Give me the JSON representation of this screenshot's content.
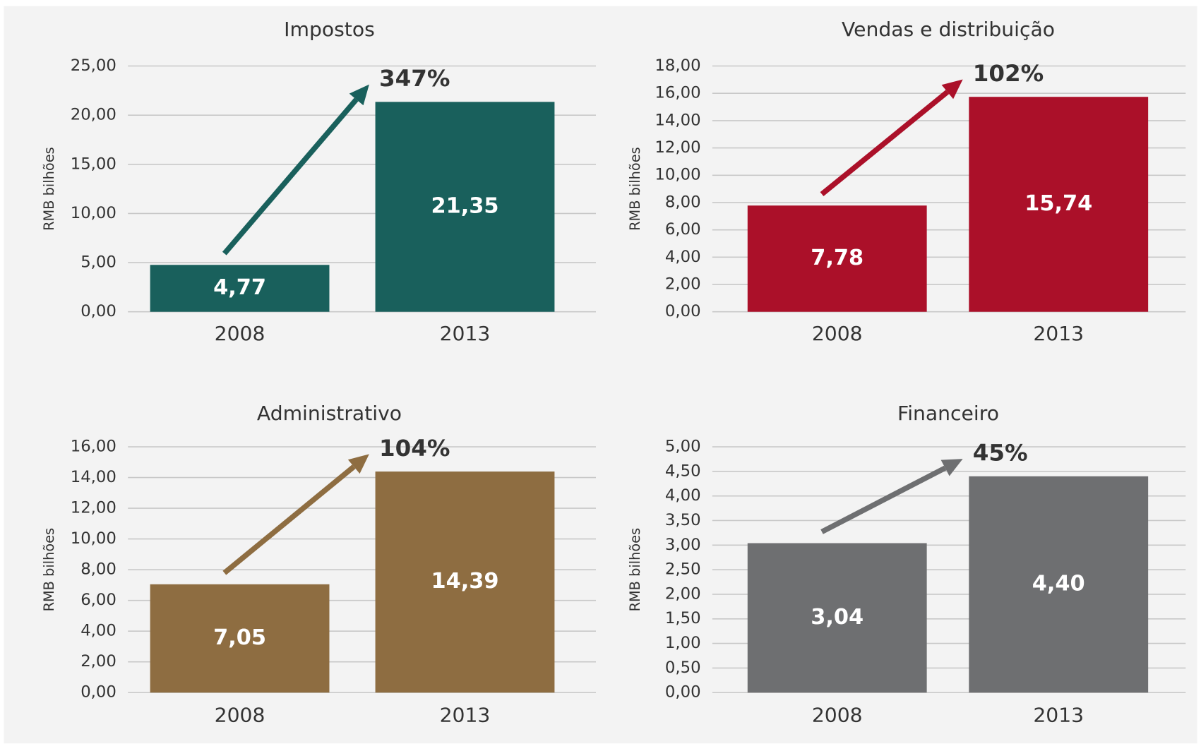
{
  "chart_data": [
    {
      "type": "bar",
      "title": "Impostos",
      "ylabel": "RMB bilhões",
      "categories": [
        "2008",
        "2013"
      ],
      "values": [
        4.77,
        21.35
      ],
      "value_labels": [
        "4,77",
        "21,35"
      ],
      "color": "#19605c",
      "annotation": "347%",
      "ylim": [
        0,
        25
      ],
      "yticks": [
        {
          "value": 0,
          "label": "0,00"
        },
        {
          "value": 5,
          "label": "5,00"
        },
        {
          "value": 10,
          "label": "10,00"
        },
        {
          "value": 15,
          "label": "15,00"
        },
        {
          "value": 20,
          "label": "20,00"
        },
        {
          "value": 25,
          "label": "25,00"
        }
      ],
      "grid": true
    },
    {
      "type": "bar",
      "title": "Vendas e distribuição",
      "ylabel": "RMB bilhões",
      "categories": [
        "2008",
        "2013"
      ],
      "values": [
        7.78,
        15.74
      ],
      "value_labels": [
        "7,78",
        "15,74"
      ],
      "color": "#ab1029",
      "annotation": "102%",
      "ylim": [
        0,
        18
      ],
      "yticks": [
        {
          "value": 0,
          "label": "0,00"
        },
        {
          "value": 2,
          "label": "2,00"
        },
        {
          "value": 4,
          "label": "4,00"
        },
        {
          "value": 6,
          "label": "6,00"
        },
        {
          "value": 8,
          "label": "8,00"
        },
        {
          "value": 10,
          "label": "10,00"
        },
        {
          "value": 12,
          "label": "12,00"
        },
        {
          "value": 14,
          "label": "14,00"
        },
        {
          "value": 16,
          "label": "16,00"
        },
        {
          "value": 18,
          "label": "18,00"
        }
      ],
      "grid": true
    },
    {
      "type": "bar",
      "title": "Administrativo",
      "ylabel": "RMB bilhões",
      "categories": [
        "2008",
        "2013"
      ],
      "values": [
        7.05,
        14.39
      ],
      "value_labels": [
        "7,05",
        "14,39"
      ],
      "color": "#8e6d41",
      "annotation": "104%",
      "ylim": [
        0,
        16
      ],
      "yticks": [
        {
          "value": 0,
          "label": "0,00"
        },
        {
          "value": 2,
          "label": "2,00"
        },
        {
          "value": 4,
          "label": "4,00"
        },
        {
          "value": 6,
          "label": "6,00"
        },
        {
          "value": 8,
          "label": "8,00"
        },
        {
          "value": 10,
          "label": "10,00"
        },
        {
          "value": 12,
          "label": "12,00"
        },
        {
          "value": 14,
          "label": "14,00"
        },
        {
          "value": 16,
          "label": "16,00"
        }
      ],
      "grid": true
    },
    {
      "type": "bar",
      "title": "Financeiro",
      "ylabel": "RMB bilhões",
      "categories": [
        "2008",
        "2013"
      ],
      "values": [
        3.04,
        4.4
      ],
      "value_labels": [
        "3,04",
        "4,40"
      ],
      "color": "#6e6f71",
      "annotation": "45%",
      "ylim": [
        0,
        5
      ],
      "yticks": [
        {
          "value": 0,
          "label": "0,00"
        },
        {
          "value": 0.5,
          "label": "0,50"
        },
        {
          "value": 1,
          "label": "1,00"
        },
        {
          "value": 1.5,
          "label": "1,50"
        },
        {
          "value": 2,
          "label": "2,00"
        },
        {
          "value": 2.5,
          "label": "2,50"
        },
        {
          "value": 3,
          "label": "3,00"
        },
        {
          "value": 3.5,
          "label": "3,50"
        },
        {
          "value": 4,
          "label": "4,00"
        },
        {
          "value": 4.5,
          "label": "4,50"
        },
        {
          "value": 5,
          "label": "5,00"
        }
      ],
      "grid": true
    }
  ]
}
